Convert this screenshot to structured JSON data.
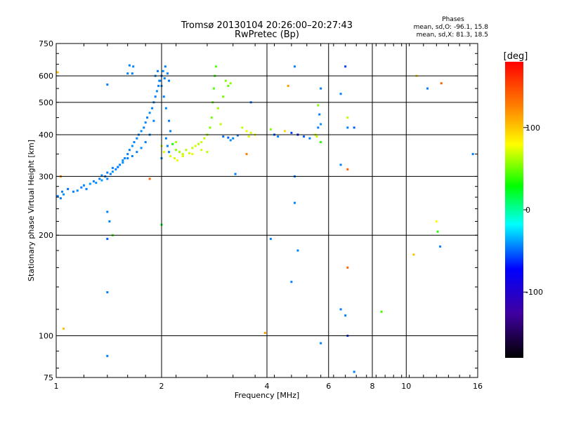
{
  "chart_data": {
    "type": "scatter",
    "title": "Tromsø 20130104 20:26:00–20:27:43",
    "subtitle": "RwPretec (Bp)",
    "xlabel": "Frequency [MHz]",
    "ylabel": "Stationary phase Virtual Height [km]",
    "x_scale": "log",
    "y_scale": "log",
    "xlim": [
      1,
      16
    ],
    "ylim": [
      75,
      750
    ],
    "x_ticks": [
      1,
      2,
      4,
      6,
      8,
      10,
      16
    ],
    "y_ticks": [
      75,
      100,
      200,
      300,
      400,
      500,
      600,
      750
    ],
    "grid": true,
    "phases_info": {
      "heading": "Phases",
      "line_o": "mean, sd,O: -96.1, 15.8",
      "line_x": "mean, sd,X: 81.3, 18.5"
    },
    "colorbar": {
      "label": "[deg]",
      "range": [
        -180,
        180
      ],
      "ticks": [
        100,
        0,
        -100
      ]
    },
    "series": [
      {
        "points": [
          [
            1.01,
            262,
            -100
          ],
          [
            1.03,
            258,
            -100
          ],
          [
            1.05,
            265,
            -95
          ],
          [
            1.04,
            270,
            -100
          ],
          [
            1.08,
            275,
            -105
          ],
          [
            1.12,
            270,
            -100
          ],
          [
            1.15,
            272,
            -95
          ],
          [
            1.18,
            278,
            -100
          ],
          [
            1.2,
            282,
            -98
          ],
          [
            1.22,
            275,
            -100
          ],
          [
            1.25,
            285,
            -92
          ],
          [
            1.28,
            290,
            -100
          ],
          [
            1.3,
            287,
            -95
          ],
          [
            1.33,
            295,
            -100
          ],
          [
            1.35,
            292,
            -90
          ],
          [
            1.38,
            300,
            -100
          ],
          [
            1.4,
            295,
            -98
          ],
          [
            1.43,
            305,
            -100
          ],
          [
            1.45,
            310,
            -92
          ],
          [
            1.48,
            315,
            -100
          ],
          [
            1.5,
            320,
            -98
          ],
          [
            1.52,
            325,
            -100
          ],
          [
            1.55,
            330,
            -96
          ],
          [
            1.57,
            340,
            -100
          ],
          [
            1.6,
            350,
            -98
          ],
          [
            1.62,
            360,
            -100
          ],
          [
            1.65,
            370,
            -95
          ],
          [
            1.67,
            380,
            -100
          ],
          [
            1.7,
            390,
            -98
          ],
          [
            1.72,
            400,
            -100
          ],
          [
            1.75,
            410,
            -96
          ],
          [
            1.78,
            420,
            -100
          ],
          [
            1.8,
            435,
            -98
          ],
          [
            1.82,
            450,
            -100
          ],
          [
            1.85,
            465,
            -96
          ],
          [
            1.88,
            480,
            -100
          ],
          [
            1.9,
            500,
            -98
          ],
          [
            1.92,
            520,
            -100
          ],
          [
            1.94,
            540,
            -96
          ],
          [
            1.96,
            560,
            -100
          ],
          [
            1.98,
            580,
            -98
          ],
          [
            2.0,
            600,
            -100
          ],
          [
            2.02,
            620,
            -96
          ],
          [
            2.05,
            640,
            -100
          ],
          [
            2.08,
            610,
            -98
          ],
          [
            2.1,
            580,
            -100
          ],
          [
            1.95,
            620,
            -100
          ],
          [
            1.92,
            600,
            -95
          ],
          [
            2.0,
            560,
            -98
          ],
          [
            2.03,
            520,
            -100
          ],
          [
            2.06,
            480,
            -96
          ],
          [
            2.1,
            440,
            -100
          ],
          [
            1.9,
            440,
            -100
          ],
          [
            1.85,
            400,
            -98
          ],
          [
            1.8,
            380,
            -100
          ],
          [
            1.75,
            365,
            -96
          ],
          [
            1.7,
            355,
            -100
          ],
          [
            1.65,
            345,
            -98
          ],
          [
            1.6,
            340,
            -100
          ],
          [
            1.55,
            335,
            -95
          ],
          [
            1.5,
            320,
            -100
          ],
          [
            1.45,
            318,
            -98
          ],
          [
            1.4,
            308,
            -100
          ],
          [
            1.35,
            302,
            -96
          ],
          [
            1.62,
            645,
            -100
          ],
          [
            1.66,
            640,
            -98
          ],
          [
            1.6,
            610,
            -100
          ],
          [
            1.97,
            580,
            -98
          ],
          [
            2.04,
            590,
            -100
          ],
          [
            2.06,
            390,
            -100
          ],
          [
            2.08,
            370,
            -98
          ],
          [
            2.1,
            355,
            -100
          ],
          [
            2.0,
            340,
            -96
          ],
          [
            2.12,
            410,
            -100
          ],
          [
            2.15,
            375,
            25
          ],
          [
            2.2,
            360,
            60
          ],
          [
            2.25,
            355,
            70
          ],
          [
            2.3,
            350,
            80
          ],
          [
            2.35,
            360,
            75
          ],
          [
            2.4,
            352,
            85
          ],
          [
            2.45,
            365,
            80
          ],
          [
            2.5,
            370,
            90
          ],
          [
            2.55,
            375,
            75
          ],
          [
            2.6,
            380,
            85
          ],
          [
            2.65,
            390,
            80
          ],
          [
            2.7,
            400,
            70
          ],
          [
            2.75,
            420,
            60
          ],
          [
            2.78,
            450,
            55
          ],
          [
            2.8,
            500,
            50
          ],
          [
            2.82,
            550,
            45
          ],
          [
            2.84,
            600,
            40
          ],
          [
            2.86,
            640,
            45
          ],
          [
            2.9,
            480,
            70
          ],
          [
            2.95,
            430,
            80
          ],
          [
            2.12,
            345,
            90
          ],
          [
            2.18,
            340,
            85
          ],
          [
            2.22,
            335,
            95
          ],
          [
            2.3,
            345,
            88
          ],
          [
            2.45,
            350,
            92
          ],
          [
            2.0,
            370,
            80
          ],
          [
            2.03,
            355,
            90
          ],
          [
            2.2,
            380,
            70
          ],
          [
            2.6,
            360,
            85
          ],
          [
            2.7,
            355,
            78
          ],
          [
            3.0,
            395,
            -105
          ],
          [
            3.1,
            392,
            -110
          ],
          [
            3.2,
            390,
            -100
          ],
          [
            3.3,
            398,
            -105
          ],
          [
            3.15,
            385,
            -95
          ],
          [
            3.05,
            580,
            60
          ],
          [
            3.1,
            560,
            50
          ],
          [
            3.0,
            520,
            55
          ],
          [
            3.15,
            570,
            65
          ],
          [
            3.4,
            420,
            80
          ],
          [
            3.5,
            410,
            95
          ],
          [
            3.6,
            405,
            85
          ],
          [
            3.7,
            400,
            100
          ],
          [
            3.55,
            395,
            90
          ],
          [
            4.1,
            415,
            60
          ],
          [
            4.2,
            400,
            -110
          ],
          [
            4.3,
            395,
            -100
          ],
          [
            4.5,
            410,
            110
          ],
          [
            4.7,
            405,
            -120
          ],
          [
            4.9,
            400,
            -130
          ],
          [
            5.1,
            395,
            -110
          ],
          [
            5.3,
            390,
            -100
          ],
          [
            5.5,
            400,
            90
          ],
          [
            5.6,
            420,
            -100
          ],
          [
            5.7,
            430,
            -95
          ],
          [
            5.65,
            460,
            -100
          ],
          [
            5.6,
            490,
            60
          ],
          [
            5.7,
            380,
            30
          ],
          [
            5.55,
            395,
            80
          ],
          [
            1.65,
            610,
            -100
          ],
          [
            3.25,
            305,
            -100
          ],
          [
            3.6,
            500,
            -100
          ],
          [
            3.5,
            350,
            140
          ],
          [
            4.8,
            300,
            -100
          ],
          [
            4.8,
            250,
            -100
          ],
          [
            4.6,
            560,
            130
          ],
          [
            4.8,
            640,
            -100
          ],
          [
            5.7,
            550,
            -100
          ],
          [
            6.5,
            530,
            -100
          ],
          [
            6.7,
            640,
            -120
          ],
          [
            6.8,
            450,
            80
          ],
          [
            6.8,
            420,
            -100
          ],
          [
            7.1,
            420,
            -110
          ],
          [
            1.01,
            615,
            120
          ],
          [
            1.03,
            300,
            140
          ],
          [
            1.05,
            105,
            120
          ],
          [
            1.4,
            565,
            -100
          ],
          [
            1.4,
            195,
            -110
          ],
          [
            1.4,
            235,
            -100
          ],
          [
            1.42,
            220,
            -100
          ],
          [
            1.45,
            200,
            40
          ],
          [
            1.4,
            135,
            -100
          ],
          [
            1.4,
            87,
            -100
          ],
          [
            1.85,
            295,
            150
          ],
          [
            2.0,
            215,
            10
          ],
          [
            4.1,
            195,
            -100
          ],
          [
            4.7,
            145,
            -100
          ],
          [
            4.9,
            180,
            -100
          ],
          [
            3.95,
            102,
            130
          ],
          [
            5.7,
            95,
            -100
          ],
          [
            6.5,
            120,
            -100
          ],
          [
            6.7,
            115,
            -100
          ],
          [
            6.8,
            100,
            -120
          ],
          [
            6.8,
            160,
            150
          ],
          [
            7.1,
            78,
            -100
          ],
          [
            6.8,
            315,
            150
          ],
          [
            6.5,
            325,
            -100
          ],
          [
            8.5,
            118,
            40
          ],
          [
            10.5,
            175,
            120
          ],
          [
            11.5,
            550,
            -100
          ],
          [
            12.2,
            220,
            100
          ],
          [
            12.3,
            205,
            30
          ],
          [
            12.5,
            185,
            -100
          ],
          [
            12.6,
            570,
            150
          ],
          [
            10.7,
            600,
            110
          ],
          [
            15.5,
            350,
            -100
          ]
        ]
      }
    ]
  }
}
